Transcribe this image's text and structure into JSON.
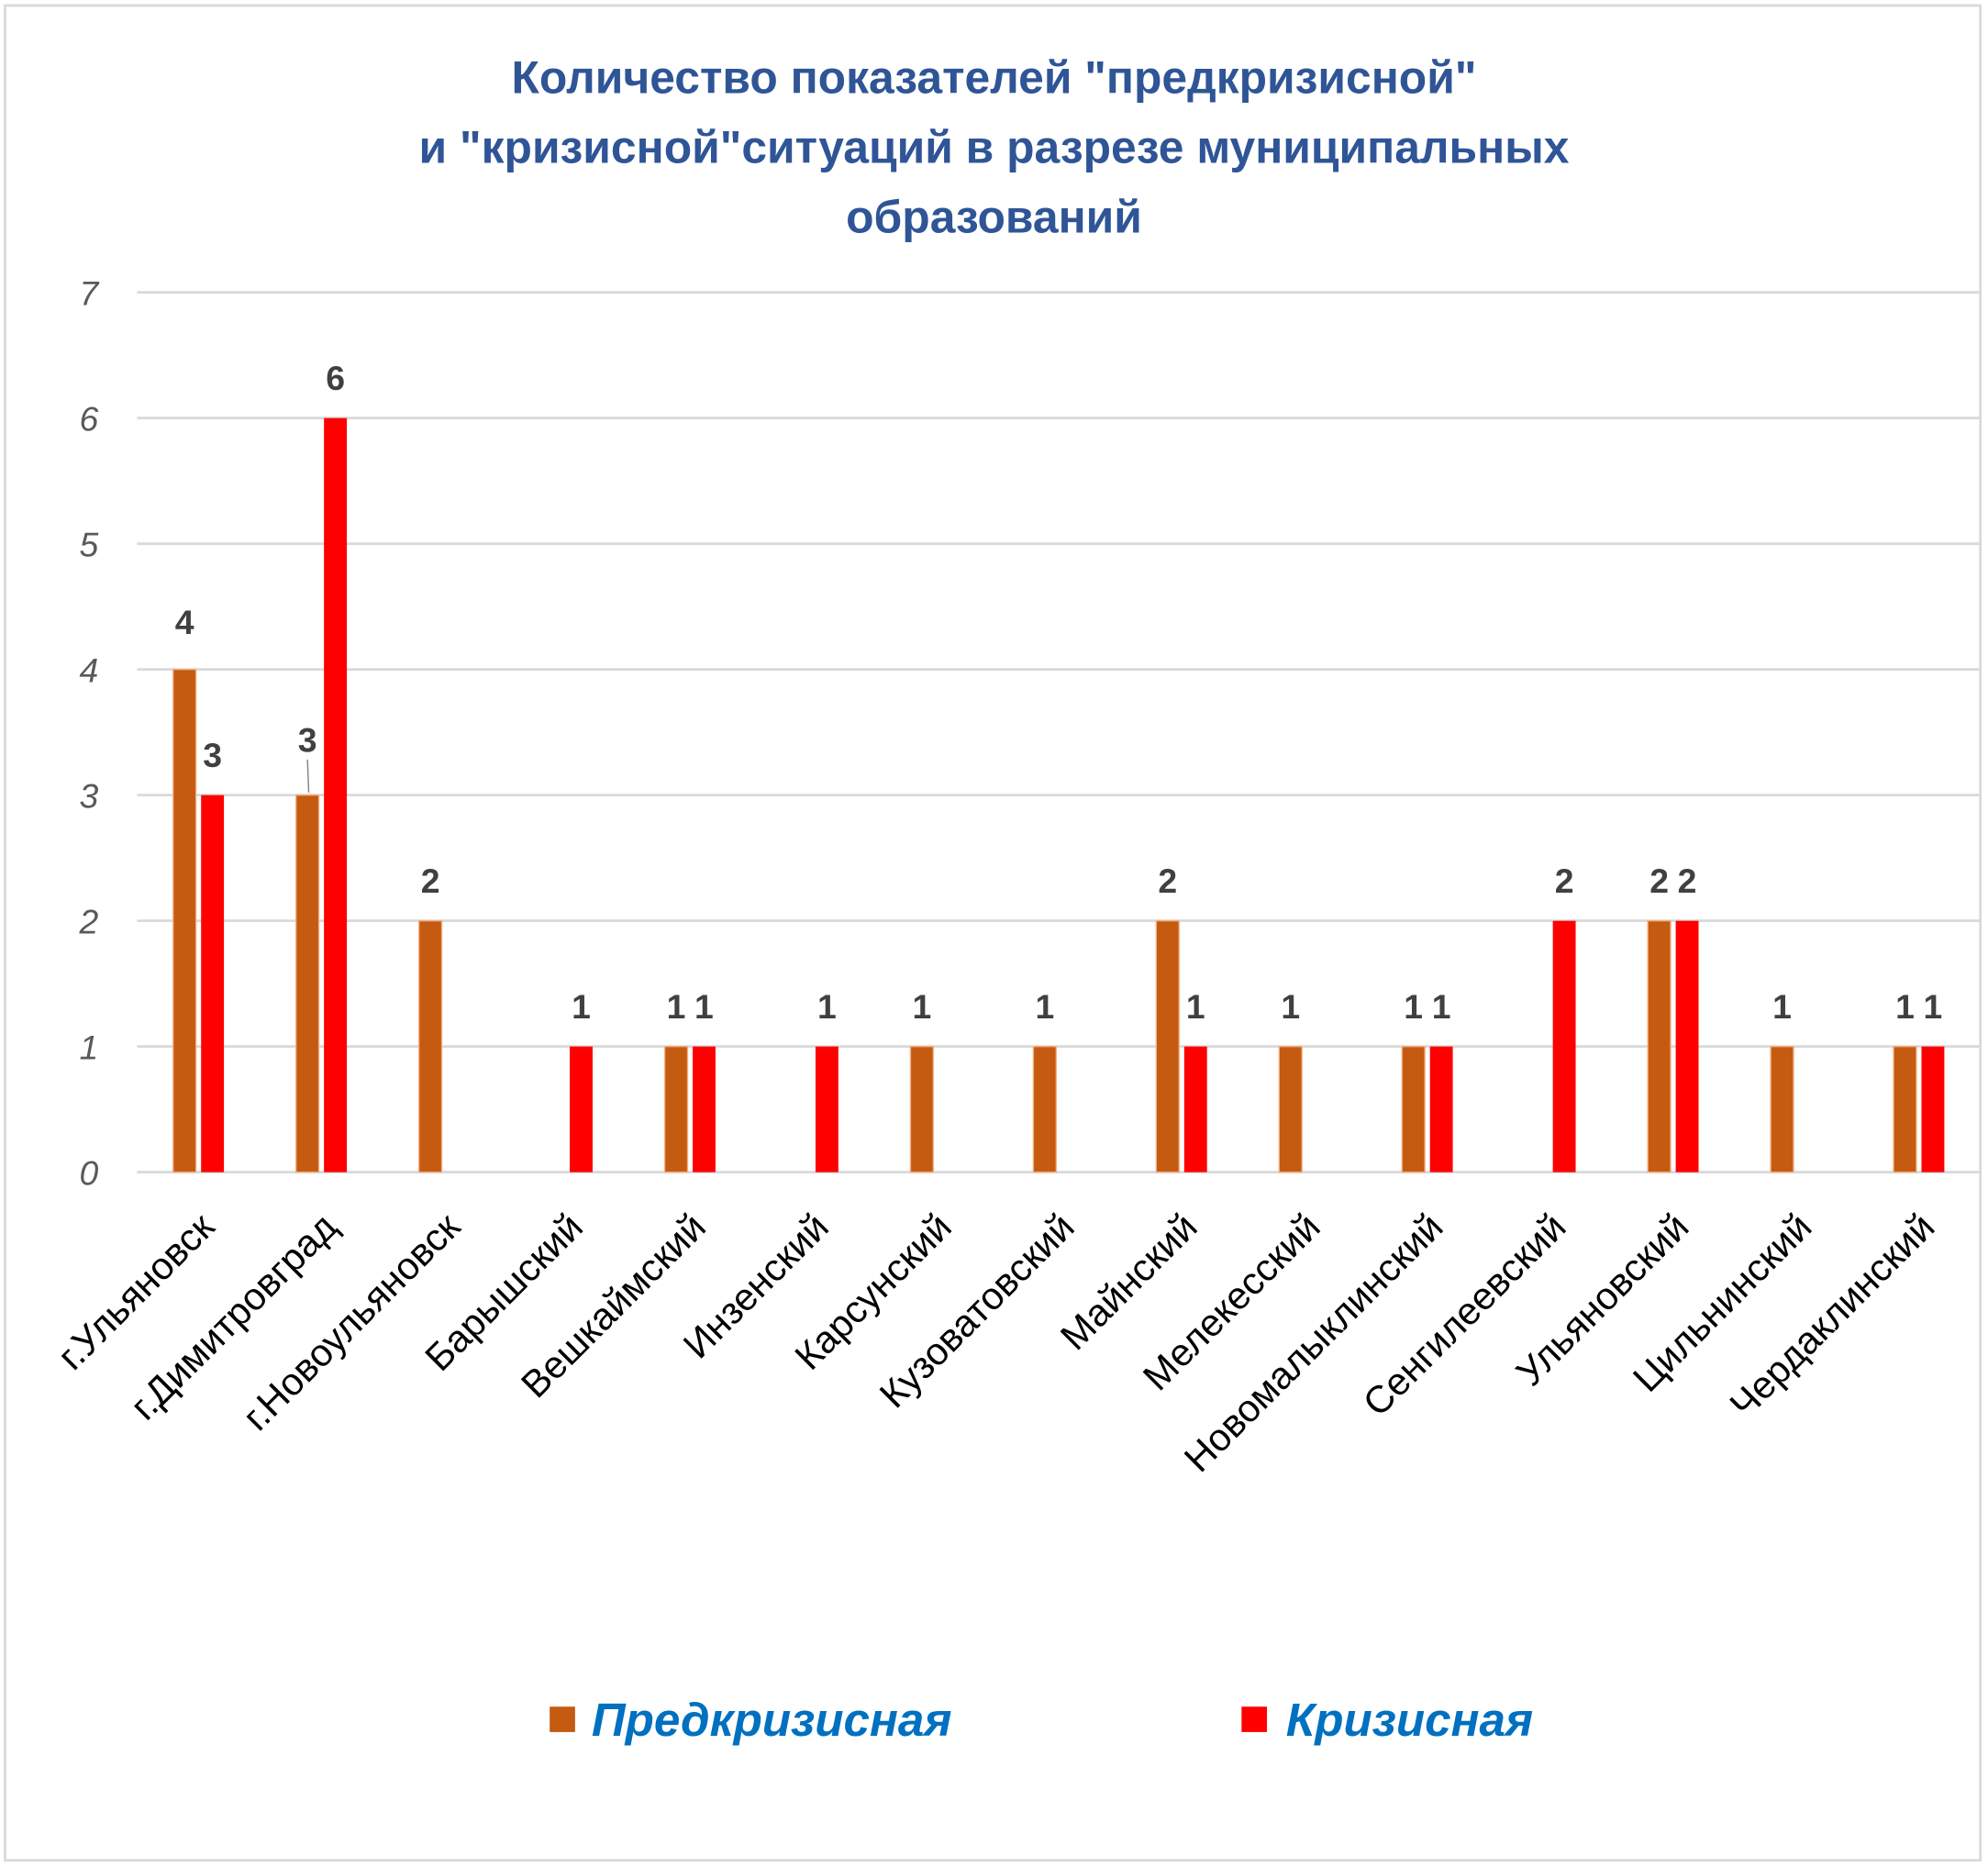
{
  "chart_data": {
    "type": "bar",
    "title": [
      "Количество показателей \"предкризисной\"",
      "и \"кризисной\"ситуаций в разрезе муниципальных",
      "образований"
    ],
    "xlabel": "",
    "ylabel": "",
    "ylim": [
      0,
      7
    ],
    "yticks": [
      0,
      1,
      2,
      3,
      4,
      5,
      6,
      7
    ],
    "grid": true,
    "legend_position": "bottom",
    "categories": [
      "г.Ульяновск",
      "г.Димитровград",
      "г.Новоульяновск",
      "Барышский",
      "Вешкаймский",
      "Инзенский",
      "Карсунский",
      "Кузоватовский",
      "Майнский",
      "Мелекесский",
      "Новомалыклинский",
      "Сенгилеевский",
      "Ульяновский",
      "Цильнинский",
      "Чердаклинский"
    ],
    "series": [
      {
        "name": "Предкризисная",
        "color": "#c55a11",
        "values": [
          4,
          3,
          2,
          null,
          1,
          null,
          1,
          1,
          2,
          1,
          1,
          null,
          2,
          1,
          1
        ]
      },
      {
        "name": "Кризисная",
        "color": "#ff0000",
        "values": [
          3,
          6,
          null,
          1,
          1,
          1,
          null,
          null,
          1,
          null,
          1,
          2,
          2,
          null,
          1
        ]
      }
    ]
  }
}
